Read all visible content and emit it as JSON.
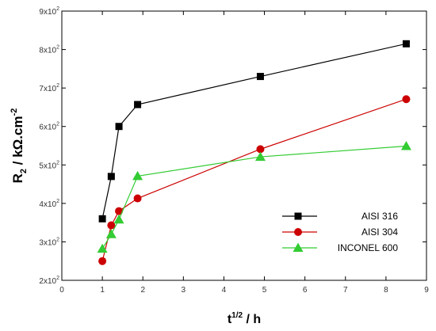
{
  "chart_data": {
    "type": "line",
    "xlabel": {
      "base": "t",
      "sup": "1/2",
      "rest": " / h"
    },
    "ylabel": {
      "base": "R",
      "sub": "2",
      "rest": " / kΩ.cm",
      "sup": "-2"
    },
    "xlim": [
      0,
      9
    ],
    "ylim": [
      200,
      900
    ],
    "x_ticks": [
      0,
      1,
      2,
      3,
      4,
      5,
      6,
      7,
      8,
      9
    ],
    "y_ticks": [
      {
        "value": 200,
        "mantissa": "2x10",
        "exp": "2"
      },
      {
        "value": 300,
        "mantissa": "3x10",
        "exp": "2"
      },
      {
        "value": 400,
        "mantissa": "4x10",
        "exp": "2"
      },
      {
        "value": 500,
        "mantissa": "5x10",
        "exp": "2"
      },
      {
        "value": 600,
        "mantissa": "6x10",
        "exp": "2"
      },
      {
        "value": 700,
        "mantissa": "7x10",
        "exp": "2"
      },
      {
        "value": 800,
        "mantissa": "8x10",
        "exp": "2"
      },
      {
        "value": 900,
        "mantissa": "9x10",
        "exp": "2"
      }
    ],
    "legend_position": "lower-right",
    "series": [
      {
        "name": "AISI 316",
        "color": "#000000",
        "marker": "square",
        "points": [
          [
            1.0,
            360
          ],
          [
            1.22,
            470
          ],
          [
            1.41,
            600
          ],
          [
            1.87,
            657
          ],
          [
            4.9,
            730
          ],
          [
            8.5,
            815
          ]
        ]
      },
      {
        "name": "AISI 304",
        "color": "#cc0000",
        "marker": "circle",
        "points": [
          [
            1.0,
            250
          ],
          [
            1.22,
            343
          ],
          [
            1.41,
            380
          ],
          [
            1.87,
            413
          ],
          [
            4.9,
            541
          ],
          [
            8.5,
            671
          ]
        ]
      },
      {
        "name": "INCONEL 600",
        "color": "#33cc33",
        "marker": "triangle",
        "points": [
          [
            1.0,
            282
          ],
          [
            1.22,
            320
          ],
          [
            1.41,
            358
          ],
          [
            1.87,
            471
          ],
          [
            4.9,
            521
          ],
          [
            8.5,
            549
          ]
        ]
      }
    ]
  }
}
